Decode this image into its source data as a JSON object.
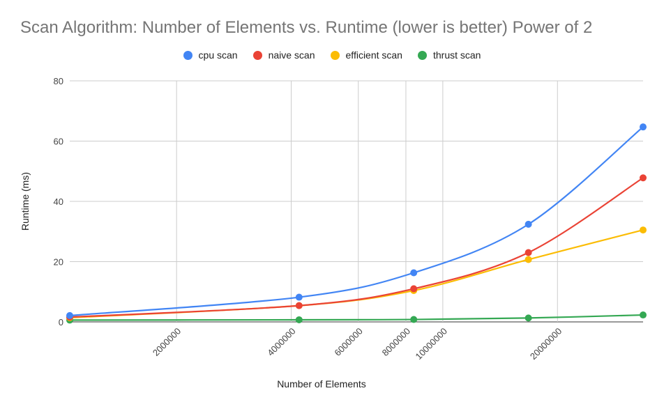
{
  "chart_data": {
    "type": "line",
    "title": "Scan Algorithm: Number of Elements vs. Runtime (lower is better) Power of 2",
    "xlabel": "Number of Elements",
    "ylabel": "Runtime (ms)",
    "x_scale": "log",
    "xlim": [
      1048576,
      33554432
    ],
    "ylim": [
      0,
      80
    ],
    "x_ticks": [
      2000000,
      4000000,
      6000000,
      8000000,
      10000000,
      20000000
    ],
    "x_tick_labels": [
      "2000000",
      "4000000",
      "6000000",
      "8000000",
      "10000000",
      "20000000"
    ],
    "y_ticks": [
      0,
      20,
      40,
      60,
      80
    ],
    "y_tick_labels": [
      "0",
      "20",
      "40",
      "60",
      "80"
    ],
    "grid": true,
    "legend_position": "top",
    "x": [
      1048576,
      4194304,
      8388608,
      16777216,
      33554432
    ],
    "series": [
      {
        "name": "cpu scan",
        "color": "#4285F4",
        "values": [
          2.1,
          8.2,
          16.3,
          32.4,
          64.7
        ]
      },
      {
        "name": "naive scan",
        "color": "#EA4335",
        "values": [
          1.6,
          5.4,
          11.0,
          23.0,
          47.8
        ]
      },
      {
        "name": "efficient scan",
        "color": "#FBBC04",
        "values": [
          1.4,
          5.4,
          10.4,
          20.7,
          30.5
        ]
      },
      {
        "name": "thrust scan",
        "color": "#34A853",
        "values": [
          0.6,
          0.7,
          0.8,
          1.3,
          2.3
        ]
      }
    ]
  }
}
